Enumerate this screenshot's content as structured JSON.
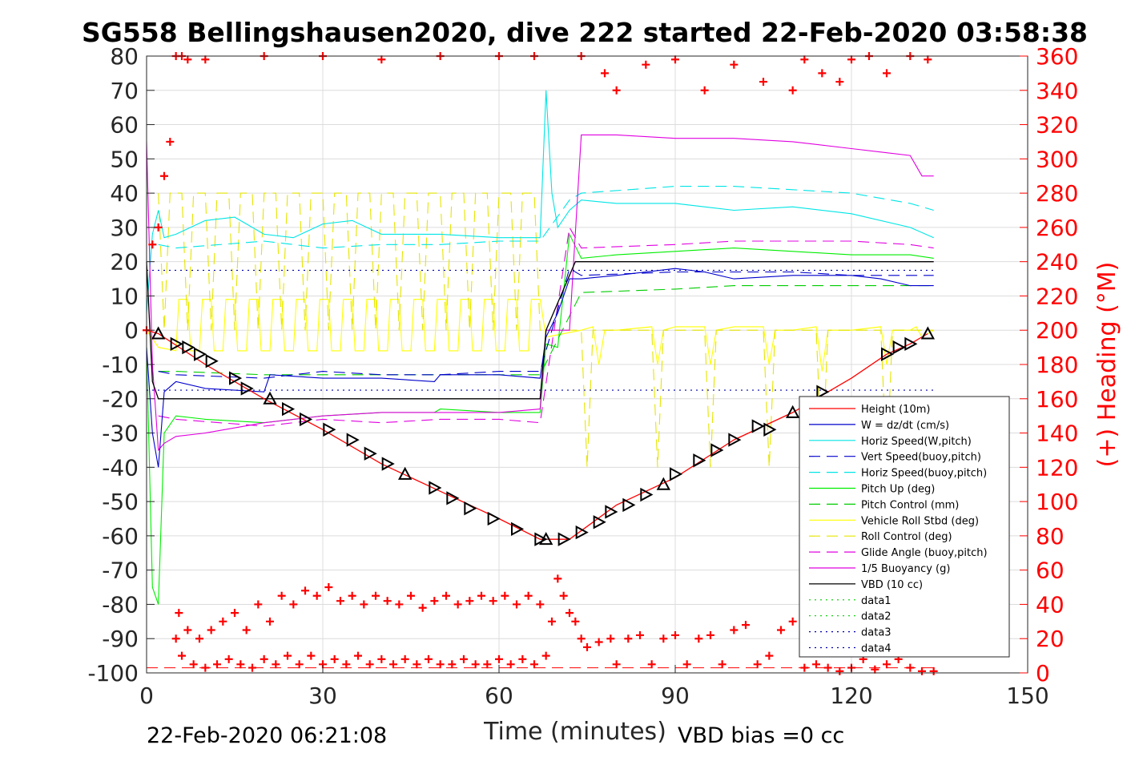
{
  "chart_data": {
    "type": "line",
    "title": "SG558 Bellingshausen2020, dive 222 started 22-Feb-2020 03:58:38",
    "xlabel": "Time (minutes)",
    "ylabel": "",
    "y2label": "(+) Heading (°M)",
    "xlim": [
      0,
      150
    ],
    "ylim": [
      -100,
      80
    ],
    "y2lim": [
      0,
      360
    ],
    "xticks": [
      "0",
      "30",
      "60",
      "90",
      "120",
      "150"
    ],
    "yticks": [
      "80",
      "70",
      "60",
      "50",
      "40",
      "30",
      "20",
      "10",
      "0",
      "-10",
      "-20",
      "-30",
      "-40",
      "-50",
      "-60",
      "-70",
      "-80",
      "-90",
      "-100"
    ],
    "y2ticks": [
      "360",
      "340",
      "320",
      "300",
      "280",
      "260",
      "240",
      "220",
      "200",
      "180",
      "160",
      "140",
      "120",
      "100",
      "80",
      "60",
      "40",
      "20",
      "0"
    ],
    "grid": true,
    "legend_position": "lower-right",
    "footer_left": "22-Feb-2020 06:21:08",
    "footer_right": "VBD bias =0 cc",
    "colors": {
      "height": "#ff0000",
      "w": "#0000cc",
      "horiz_w": "#00e5e5",
      "vert_buoy": "#0000cc",
      "horiz_buoy": "#00e5e5",
      "pitch": "#00ee00",
      "pitch_ctrl": "#00cc00",
      "roll": "#ffff00",
      "roll_ctrl": "#e5e500",
      "glide": "#e000e0",
      "buoy": "#e000e0",
      "vbd": "#000000",
      "data1": "#00cc00",
      "data2": "#00cc00",
      "data3": "#0000aa",
      "data4": "#0000aa",
      "heading": "#ff0000"
    },
    "series": [
      {
        "name": "Height (10m)",
        "key": "height",
        "style": "solid",
        "x": [
          0,
          2,
          10,
          20,
          30,
          40,
          50,
          60,
          67,
          70,
          72,
          80,
          90,
          100,
          110,
          120,
          126,
          130,
          133
        ],
        "y": [
          0,
          -1,
          -10,
          -20,
          -29,
          -39,
          -47,
          -55,
          -61,
          -61,
          -61,
          -51,
          -43,
          -32,
          -24,
          -14,
          -7,
          -4,
          -1
        ]
      },
      {
        "name": "W = dz/dt (cm/s)",
        "key": "w",
        "style": "solid",
        "x": [
          0,
          1,
          2,
          3,
          5,
          10,
          20,
          21,
          30,
          40,
          49,
          50,
          60,
          67,
          68,
          70,
          72,
          74,
          80,
          90,
          95,
          100,
          110,
          120,
          125,
          130,
          134
        ],
        "y": [
          -5,
          -30,
          -40,
          -18,
          -15,
          -17,
          -18,
          -13,
          -14,
          -14,
          -15,
          -13,
          -13,
          -14,
          -2,
          5,
          15,
          15,
          16,
          18,
          17,
          15,
          16,
          16,
          15,
          13,
          13
        ]
      },
      {
        "name": "Horiz Speed(W,pitch)",
        "key": "horiz_w",
        "style": "solid",
        "x": [
          0,
          1,
          2,
          3,
          5,
          10,
          15,
          20,
          25,
          30,
          35,
          40,
          50,
          60,
          67,
          68,
          69,
          70,
          72,
          74,
          80,
          90,
          100,
          110,
          120,
          130,
          134
        ],
        "y": [
          5,
          28,
          35,
          27,
          28,
          32,
          33,
          28,
          27,
          31,
          32,
          28,
          28,
          27,
          27,
          70,
          40,
          30,
          35,
          38,
          37,
          37,
          35,
          36,
          34,
          30,
          27
        ]
      },
      {
        "name": "Vert Speed(buoy,pitch)",
        "key": "vert_buoy",
        "style": "dashed",
        "x": [
          2,
          5,
          20,
          30,
          40,
          50,
          60,
          67,
          72,
          74,
          90,
          100,
          110,
          120,
          130,
          134
        ],
        "y": [
          -12,
          -13,
          -14,
          -12,
          -13,
          -13,
          -12,
          -12,
          18,
          16,
          17,
          17,
          17,
          16,
          16,
          16
        ]
      },
      {
        "name": "Horiz Speed(buoy,pitch)",
        "key": "horiz_buoy",
        "style": "dashed",
        "x": [
          2,
          5,
          20,
          30,
          40,
          50,
          60,
          67,
          72,
          74,
          90,
          100,
          110,
          120,
          130,
          134
        ],
        "y": [
          25,
          24,
          26,
          24,
          25,
          25,
          26,
          26,
          38,
          40,
          42,
          42,
          41,
          40,
          37,
          35
        ]
      },
      {
        "name": "Pitch Up (deg)",
        "key": "pitch",
        "style": "solid",
        "x": [
          0,
          1,
          2,
          3,
          5,
          10,
          20,
          30,
          40,
          49,
          50,
          60,
          67,
          68,
          70,
          72,
          74,
          80,
          90,
          100,
          110,
          120,
          130,
          134
        ],
        "y": [
          -5,
          -75,
          -80,
          -30,
          -25,
          -26,
          -27,
          -25,
          -24,
          -24,
          -23,
          -24,
          -24,
          -4,
          -5,
          28,
          21,
          22,
          23,
          24,
          23,
          22,
          22,
          21
        ]
      },
      {
        "name": "Pitch Control (mm)",
        "key": "pitch_ctrl",
        "style": "dashed",
        "x": [
          2,
          5,
          20,
          30,
          40,
          50,
          60,
          67,
          74,
          90,
          100,
          110,
          120,
          130,
          134
        ],
        "y": [
          -12,
          -12,
          -13,
          -13,
          -13,
          -13,
          -13,
          -13,
          11,
          12,
          13,
          13,
          13,
          13,
          13
        ]
      },
      {
        "name": "Vehicle Roll Stbd (deg)",
        "key": "roll",
        "style": "solid",
        "x": [
          0,
          2,
          5,
          5.5,
          7,
          7.5,
          9,
          9.5,
          11,
          11.5,
          13,
          13.5,
          15,
          15.5,
          17,
          17.5,
          19,
          19.5,
          21,
          21.5,
          23,
          23.5,
          25,
          25.5,
          27,
          27.5,
          29,
          29.5,
          31,
          31.5,
          33,
          33.5,
          35,
          35.5,
          37,
          37.5,
          39,
          39.5,
          41,
          41.5,
          43,
          43.5,
          45,
          45.5,
          47,
          47.5,
          49,
          49.5,
          51,
          51.5,
          53,
          53.5,
          55,
          55.5,
          57,
          57.5,
          59,
          59.5,
          61,
          61.5,
          63,
          63.5,
          65,
          65.5,
          67,
          68,
          74,
          76,
          77,
          78,
          80,
          86,
          87,
          88,
          90,
          95,
          96,
          97,
          100,
          105,
          106,
          107,
          110,
          114,
          115,
          116,
          120,
          125,
          126,
          127,
          130,
          131,
          132,
          134
        ],
        "y": [
          0,
          -5,
          -6,
          9,
          9,
          -6,
          -6,
          9,
          9,
          -6,
          -6,
          9,
          9,
          -6,
          -6,
          9,
          9,
          -6,
          -6,
          9,
          9,
          -6,
          -6,
          9,
          9,
          -6,
          -6,
          9,
          9,
          -6,
          -6,
          9,
          9,
          -6,
          -6,
          9,
          9,
          -6,
          -6,
          9,
          9,
          -6,
          -6,
          9,
          9,
          -6,
          -6,
          9,
          9,
          -6,
          -6,
          9,
          9,
          -6,
          -6,
          9,
          9,
          -6,
          -6,
          9,
          9,
          -6,
          -6,
          9,
          9,
          -2,
          0,
          1,
          -10,
          0,
          0,
          1,
          -10,
          0,
          1,
          1,
          -10,
          0,
          1,
          1,
          -10,
          0,
          0,
          1,
          -12,
          0,
          0,
          1,
          -10,
          0,
          0,
          1,
          -2,
          0
        ]
      },
      {
        "name": "Roll Control (deg)",
        "key": "roll_ctrl",
        "style": "dashed",
        "x": [
          2,
          3,
          4,
          6,
          7,
          8,
          10,
          11,
          12,
          14,
          15,
          16,
          18,
          19,
          20,
          22,
          23,
          24,
          26,
          27,
          28,
          30,
          31,
          32,
          34,
          35,
          36,
          38,
          39,
          40,
          42,
          43,
          44,
          46,
          47,
          48,
          50,
          51,
          52,
          54,
          55,
          56,
          58,
          59,
          60,
          62,
          63,
          64,
          66,
          67,
          74,
          75,
          76,
          80,
          86,
          87,
          88,
          90,
          95,
          96,
          97,
          100,
          105,
          106,
          107,
          110,
          114,
          115,
          116,
          120,
          125,
          126,
          127,
          130,
          134
        ],
        "y": [
          40,
          0,
          40,
          40,
          0,
          40,
          40,
          0,
          40,
          40,
          0,
          40,
          40,
          0,
          40,
          40,
          0,
          40,
          40,
          0,
          40,
          40,
          0,
          40,
          40,
          0,
          40,
          40,
          0,
          40,
          40,
          0,
          40,
          40,
          0,
          40,
          40,
          0,
          40,
          40,
          0,
          40,
          40,
          0,
          40,
          40,
          0,
          40,
          40,
          0,
          0,
          -40,
          0,
          0,
          0,
          -40,
          0,
          0,
          0,
          -40,
          0,
          0,
          0,
          -40,
          0,
          0,
          0,
          -40,
          0,
          0,
          0,
          -40,
          0,
          0,
          0
        ]
      },
      {
        "name": "Glide Angle (buoy,pitch)",
        "key": "glide",
        "style": "dashed",
        "x": [
          2,
          5,
          20,
          30,
          40,
          50,
          60,
          67,
          72,
          74,
          90,
          100,
          110,
          120,
          130,
          134
        ],
        "y": [
          -25,
          -26,
          -28,
          -26,
          -27,
          -26,
          -26,
          -27,
          30,
          24,
          25,
          26,
          26,
          26,
          25,
          24
        ]
      },
      {
        "name": "1/5 Buoyancy (g)",
        "key": "buoy",
        "style": "solid",
        "x": [
          0,
          1,
          2,
          3,
          5,
          10,
          20,
          30,
          40,
          50,
          60,
          67,
          68,
          72,
          74,
          80,
          90,
          100,
          110,
          120,
          125,
          130,
          132,
          134
        ],
        "y": [
          55,
          -10,
          -35,
          -33,
          -31,
          -30,
          -27,
          -25,
          -24,
          -24,
          -24,
          -23,
          0,
          0,
          57,
          57,
          56,
          56,
          55,
          53,
          52,
          51,
          45,
          45
        ]
      },
      {
        "name": "VBD (10 cc)",
        "key": "vbd",
        "style": "solid",
        "x": [
          0,
          1,
          2,
          67,
          68,
          73,
          74,
          90,
          110,
          120,
          134
        ],
        "y": [
          20,
          -15,
          -20,
          -20,
          0,
          20,
          20,
          20,
          20,
          20,
          20
        ]
      },
      {
        "name": "data1",
        "key": "data1",
        "style": "dotted",
        "x": [],
        "y": []
      },
      {
        "name": "data2",
        "key": "data2",
        "style": "dotted",
        "x": [],
        "y": []
      },
      {
        "name": "data3",
        "key": "data3",
        "style": "dotted",
        "x": [
          0,
          134
        ],
        "y": [
          17.5,
          17.5
        ]
      },
      {
        "name": "data4",
        "key": "data4",
        "style": "dotted",
        "x": [
          0,
          134
        ],
        "y": [
          -17.5,
          -17.5
        ]
      }
    ],
    "markers": {
      "x": [
        2,
        5,
        7,
        9,
        11,
        15,
        17,
        21,
        24,
        27,
        31,
        35,
        38,
        41,
        44,
        49,
        52,
        55,
        59,
        63,
        67,
        68,
        71,
        74,
        77,
        79,
        82,
        85,
        88,
        90,
        94,
        97,
        100,
        104,
        106,
        110,
        115,
        126,
        128,
        130,
        133
      ],
      "y": [
        -1,
        -4,
        -5,
        -7,
        -9,
        -14,
        -17,
        -20,
        -23,
        -26,
        -29,
        -32,
        -36,
        -39,
        -42,
        -46,
        -49,
        -52,
        -55,
        -58,
        -61,
        -61,
        -61,
        -59,
        -56,
        -53,
        -51,
        -48,
        -45,
        -42,
        -38,
        -35,
        -32,
        -28,
        -29,
        -24,
        -18,
        -7,
        -5,
        -4,
        -1
      ]
    },
    "heading": {
      "name": "(+) Heading (°M)",
      "x": [
        0,
        1,
        2,
        3,
        4,
        5,
        6,
        7,
        10,
        20,
        30,
        40,
        50,
        60,
        66,
        5,
        5.5,
        6,
        7,
        8,
        9,
        10,
        11,
        12,
        13,
        14,
        15,
        16,
        17,
        18,
        19,
        20,
        21,
        22,
        23,
        24,
        25,
        26,
        27,
        28,
        29,
        30,
        31,
        32,
        33,
        34,
        35,
        36,
        37,
        38,
        39,
        40,
        41,
        42,
        43,
        44,
        45,
        46,
        47,
        48,
        49,
        50,
        51,
        52,
        53,
        54,
        55,
        56,
        57,
        58,
        59,
        60,
        61,
        62,
        63,
        64,
        65,
        66,
        67,
        68,
        69,
        70,
        71,
        72,
        73,
        74,
        75,
        77,
        79,
        80,
        82,
        84,
        86,
        88,
        90,
        92,
        94,
        96,
        98,
        100,
        102,
        104,
        106,
        108,
        110,
        112,
        114,
        116,
        118,
        120,
        122,
        124,
        126,
        128,
        130,
        132,
        134,
        74,
        78,
        80,
        85,
        90,
        95,
        100,
        105,
        110,
        112,
        115,
        118,
        120,
        123,
        126,
        130,
        133
      ],
      "y": [
        200,
        250,
        260,
        290,
        310,
        360,
        360,
        358,
        358,
        360,
        360,
        358,
        360,
        360,
        360,
        20,
        35,
        10,
        25,
        5,
        20,
        3,
        25,
        5,
        30,
        8,
        35,
        5,
        25,
        3,
        40,
        8,
        30,
        5,
        45,
        10,
        40,
        5,
        48,
        10,
        45,
        5,
        50,
        8,
        42,
        5,
        45,
        10,
        40,
        5,
        45,
        8,
        42,
        5,
        40,
        8,
        45,
        5,
        38,
        8,
        42,
        5,
        45,
        5,
        40,
        8,
        42,
        5,
        45,
        5,
        42,
        8,
        45,
        5,
        40,
        8,
        45,
        5,
        40,
        10,
        30,
        55,
        45,
        35,
        30,
        20,
        15,
        18,
        20,
        5,
        20,
        22,
        5,
        20,
        22,
        5,
        20,
        22,
        5,
        25,
        28,
        5,
        10,
        25,
        30,
        3,
        5,
        3,
        1,
        3,
        8,
        2,
        5,
        8,
        3,
        1,
        1,
        360,
        350,
        340,
        355,
        358,
        340,
        355,
        345,
        340,
        358,
        350,
        345,
        358,
        360,
        350,
        360,
        358
      ]
    }
  }
}
